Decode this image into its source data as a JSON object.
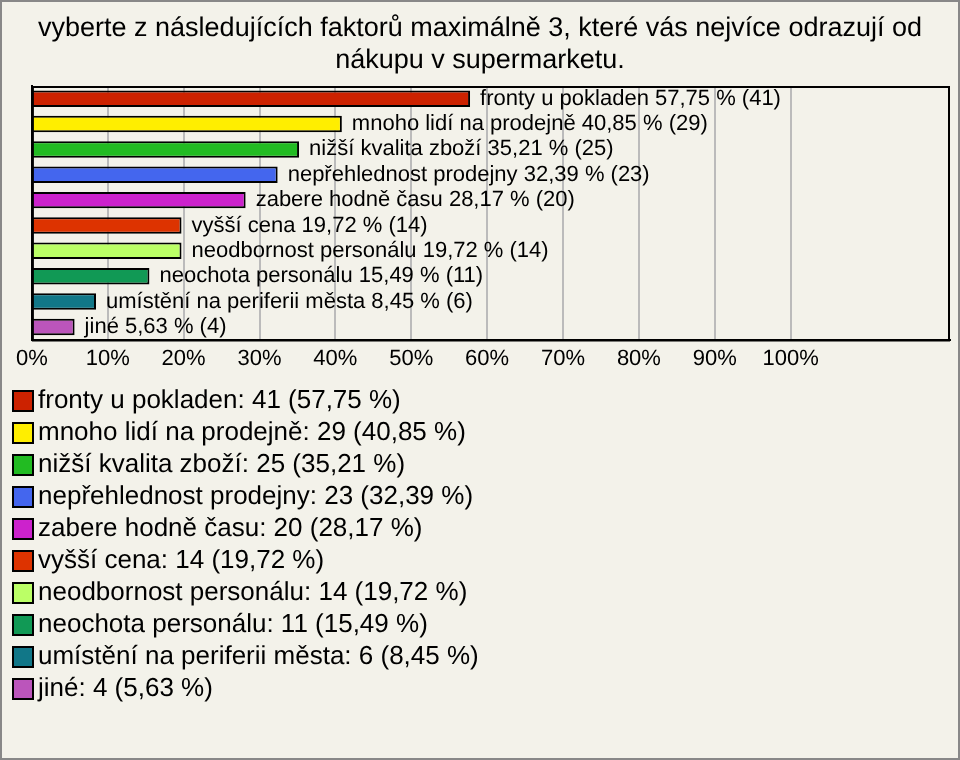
{
  "chart_data": {
    "type": "bar",
    "orientation": "horizontal",
    "title": "vyberte z následujících faktorů maximálně 3, které vás nejvíce odrazují od nákupu v supermarketu.",
    "categories": [
      null,
      null,
      null,
      null,
      null,
      null,
      null,
      null,
      null,
      null
    ],
    "values": [
      57.75,
      40.85,
      35.21,
      32.39,
      28.17,
      19.72,
      19.72,
      15.49,
      8.45,
      5.63
    ],
    "value_labels": [
      "fronty u pokladen 57,75 % (41)",
      "mnoho lidí na prodejně 40,85 % (29)",
      "nižší kvalita zboží 35,21 % (25)",
      "nepřehlednost prodejny 32,39 % (23)",
      "zabere hodně času 28,17 % (20)",
      "vyšší cena 19,72 % (14)",
      "neodbornost personálu 19,72 % (14)",
      "neochota personálu 15,49 % (11)",
      "umístění na periferii města 8,45 % (6)",
      "jiné 5,63 % (4)"
    ],
    "colors": [
      "#cc2200",
      "#ffee00",
      "#22bb22",
      "#4466ee",
      "#cc22cc",
      "#dd3300",
      "#bbff66",
      "#119955",
      "#117788",
      "#bb55bb"
    ],
    "annotations": [
      "fronty u pokladen: 41 (57,75 %)",
      "mnoho lidí na prodejně: 29 (40,85 %)",
      "nižší kvalita zboží: 25 (35,21 %)",
      "nepřehlednost prodejny: 23 (32,39 %)",
      "zabere hodně času: 20 (28,17 %)",
      "vyšší cena: 14 (19,72 %)",
      "neodbornost personálu: 14 (19,72 %)",
      "neochota personálu: 11 (15,49 %)",
      "umístění na periferii města: 6 (8,45 %)",
      "jiné: 4 (5,63 %)"
    ],
    "xlim": [
      0,
      121
    ],
    "xticks": [
      {
        "value": 0,
        "label": "0%"
      },
      {
        "value": 10,
        "label": "10%"
      },
      {
        "value": 20,
        "label": "20%"
      },
      {
        "value": 30,
        "label": "30%"
      },
      {
        "value": 40,
        "label": "40%"
      },
      {
        "value": 50,
        "label": "50%"
      },
      {
        "value": 60,
        "label": "60%"
      },
      {
        "value": 70,
        "label": "70%"
      },
      {
        "value": 80,
        "label": "80%"
      },
      {
        "value": 90,
        "label": "90%"
      },
      {
        "value": 100,
        "label": "100%"
      }
    ],
    "grid": "x",
    "tick_labels": "x"
  }
}
